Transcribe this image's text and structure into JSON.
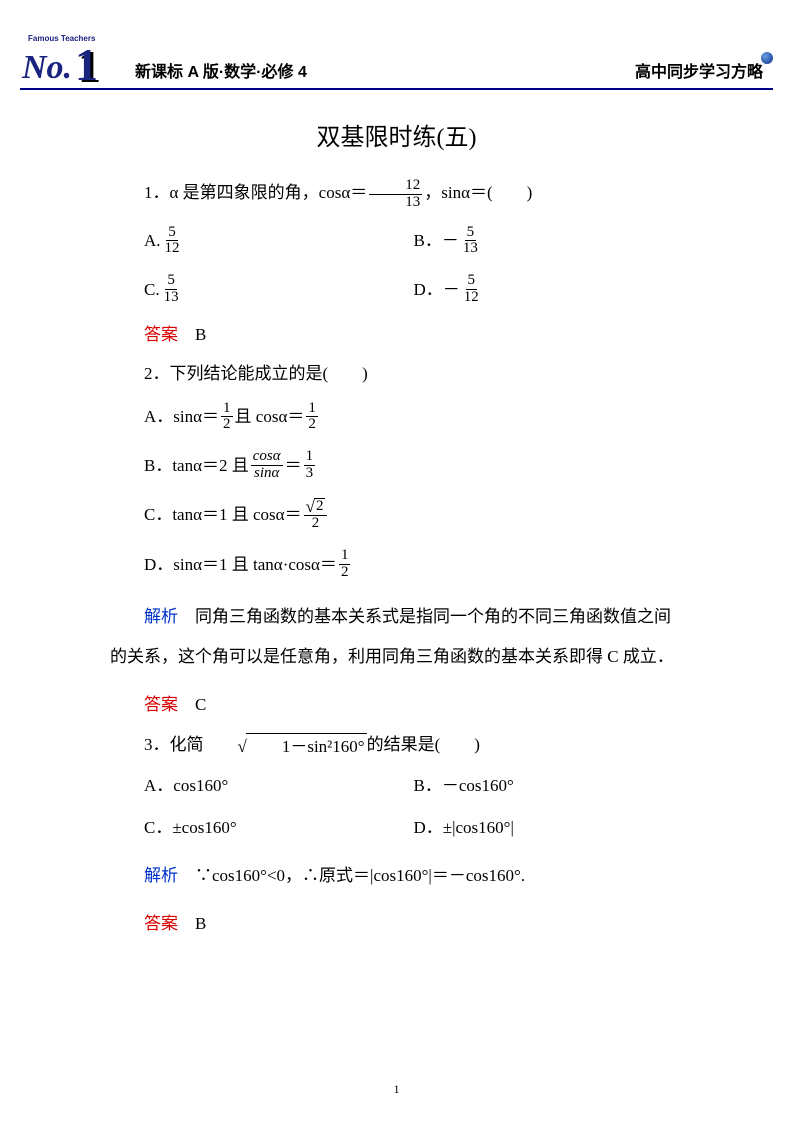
{
  "header": {
    "left": "新课标 A 版·数学·必修 4",
    "right": "高中同步学习方略",
    "logo_top": "Famous Teachers",
    "logo_main": "No.",
    "logo_digit": "1"
  },
  "title": "双基限时练(五)",
  "q1": {
    "stem_pre": "1．α 是第四象限的角，cosα＝",
    "frac_num": "12",
    "frac_den": "13",
    "stem_post": "，sinα＝(　　)",
    "A_pre": "A.",
    "A_num": "5",
    "A_den": "12",
    "B_pre": "B．－",
    "B_num": "5",
    "B_den": "13",
    "C_pre": "C.",
    "C_num": "5",
    "C_den": "13",
    "D_pre": "D．－",
    "D_num": "5",
    "D_den": "12",
    "ans_label": "答案",
    "ans": "　B"
  },
  "q2": {
    "stem": "2．下列结论能成立的是(　　)",
    "A_pre": "A．sinα＝",
    "A1n": "1",
    "A1d": "2",
    "A_mid": "且 cosα＝",
    "A2n": "1",
    "A2d": "2",
    "B_pre": "B．tanα＝2 且",
    "B1n": "cosα",
    "B1d": "sinα",
    "B_mid": "＝",
    "B2n": "1",
    "B2d": "3",
    "C_pre": "C．tanα＝1 且 cosα＝",
    "C_rad": "2",
    "C_den": "2",
    "D_pre": "D．sinα＝1 且 tanα·cosα＝",
    "D_n": "1",
    "D_d": "2",
    "exp_label": "解析",
    "exp": "　同角三角函数的基本关系式是指同一个角的不同三角函数值之间的关系，这个角可以是任意角，利用同角三角函数的基本关系即得 C 成立．",
    "ans_label": "答案",
    "ans": "　C"
  },
  "q3": {
    "stem_pre": "3．化简",
    "rad_inner": "1－sin²160°",
    "stem_post": "的结果是(　　)",
    "A": "A．cos160°",
    "B": "B．－cos160°",
    "C": "C．±cos160°",
    "D": "D．±|cos160°|",
    "exp_label": "解析",
    "exp": "　∵cos160°<0，∴原式＝|cos160°|＝－cos160°.",
    "ans_label": "答案",
    "ans": "　B"
  },
  "pagenum": "1",
  "colors": {
    "answer": "#d80000",
    "explain": "#0033cc",
    "header_line": "#000088"
  }
}
